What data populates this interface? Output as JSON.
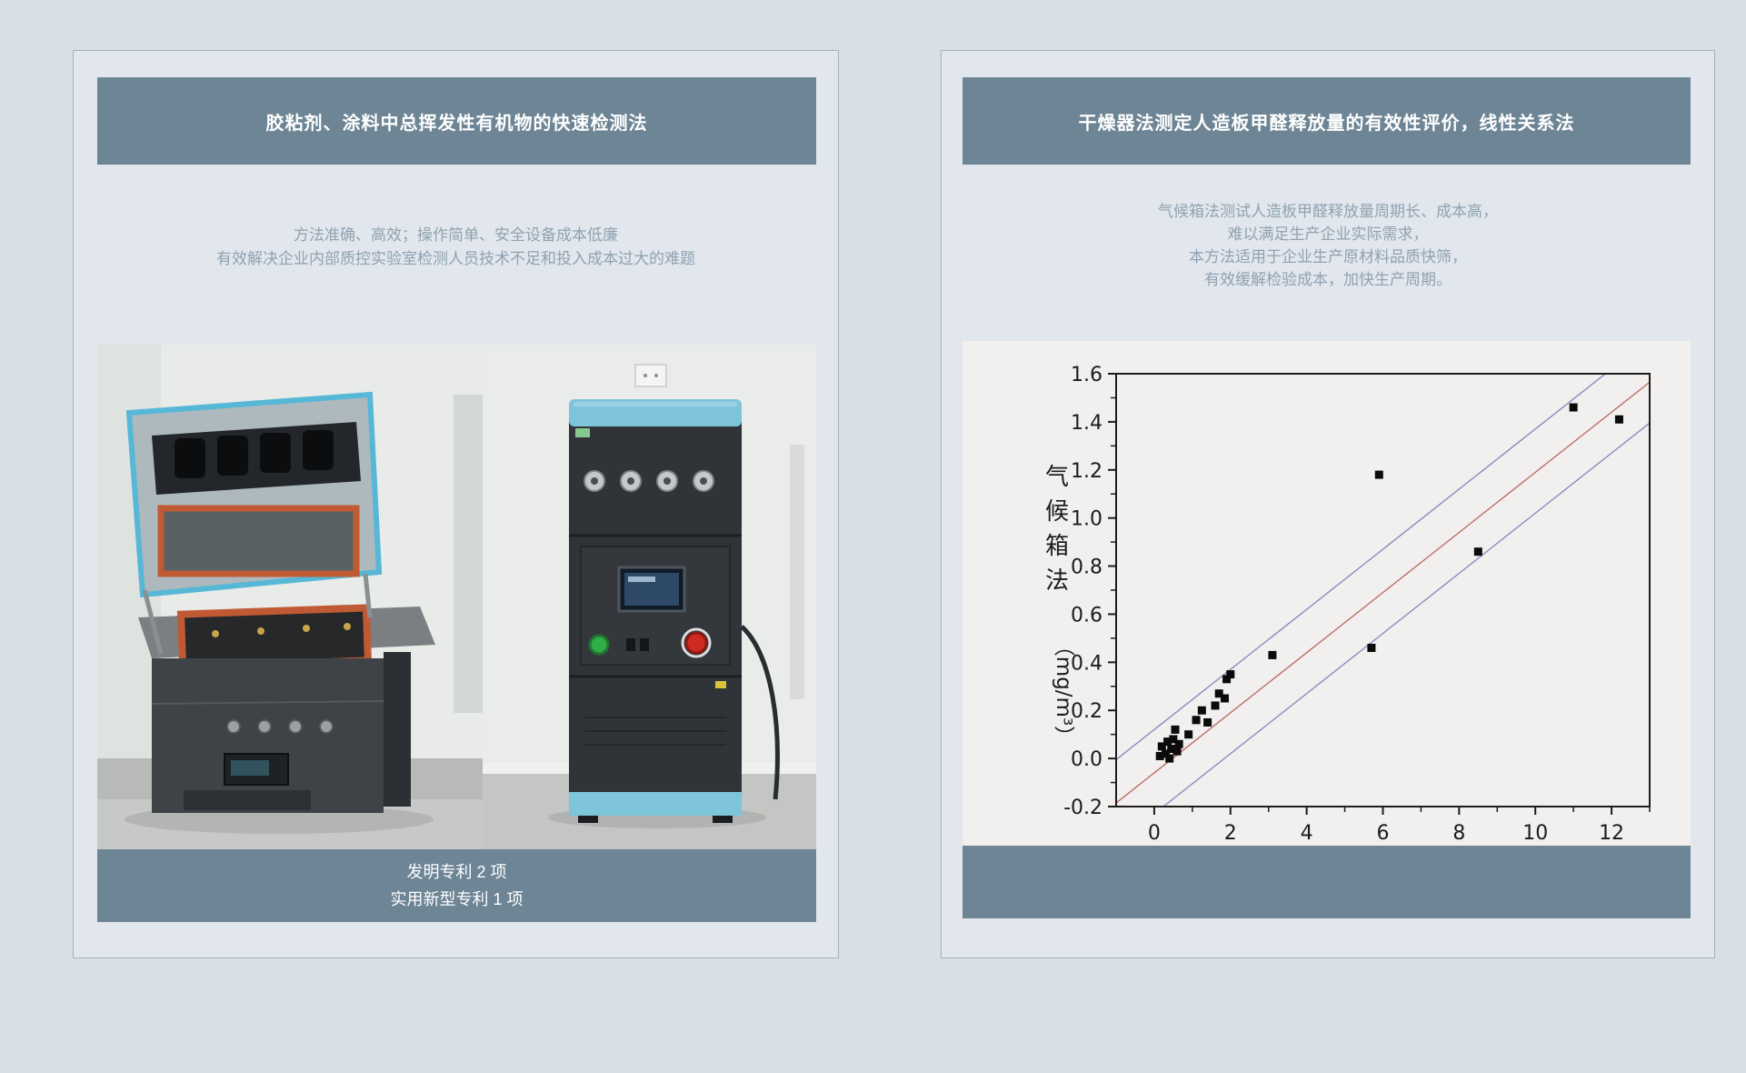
{
  "theme": {
    "accent_bar": "#6d8595",
    "page_background": "#d8dfe7",
    "panel_background": "#e2e7ee",
    "panel_border": "#a7b1b9",
    "description_text": "#8fa2b0"
  },
  "left_panel": {
    "title": "胶粘剂、涂料中总挥发性有机物的快速检测法",
    "description_lines": [
      "方法准确、高效；操作简单、安全设备成本低廉",
      "有效解决企业内部质控实验室检测人员技术不足和投入成本过大的难题"
    ],
    "photos": [
      {
        "name": "voc-tester-open-chamber"
      },
      {
        "name": "voc-tester-cabinet"
      }
    ],
    "footer_lines": [
      "发明专利 2 项",
      "实用新型专利 1 项"
    ]
  },
  "right_panel": {
    "title": "干燥器法测定人造板甲醛释放量的有效性评价，线性关系法",
    "description_lines": [
      "气候箱法测试人造板甲醛释放量周期长、成本高，",
      "难以满足生产企业实际需求，",
      "本方法适用于企业生产原材料品质快筛，",
      "有效缓解检验成本，加快生产周期。"
    ]
  },
  "chart_data": {
    "type": "scatter",
    "title": "",
    "xlabel": "",
    "ylabel": "气候箱法",
    "ylabel_unit": "（mg/m³）",
    "xlim": [
      -1,
      13
    ],
    "ylim": [
      -0.2,
      1.6
    ],
    "grid": false,
    "legend": null,
    "colors": {
      "plot_background": "#f1f0ee",
      "axis": "#1c1c1c",
      "marker": "#0b0b0b"
    },
    "x_ticks": {
      "major": [
        {
          "v": 0,
          "label": "0"
        },
        {
          "v": 2,
          "label": "2"
        },
        {
          "v": 4,
          "label": "4"
        },
        {
          "v": 6,
          "label": "6"
        },
        {
          "v": 8,
          "label": "8"
        },
        {
          "v": 10,
          "label": "10"
        },
        {
          "v": 12,
          "label": "12"
        }
      ],
      "minor": [
        1,
        3,
        5,
        7,
        9,
        11,
        13
      ]
    },
    "y_ticks": {
      "major": [
        {
          "v": -0.2,
          "label": "-0.2"
        },
        {
          "v": 0.0,
          "label": "0.0"
        },
        {
          "v": 0.2,
          "label": "0.2"
        },
        {
          "v": 0.4,
          "label": "0.4"
        },
        {
          "v": 0.6,
          "label": "0.6"
        },
        {
          "v": 0.8,
          "label": "0.8"
        },
        {
          "v": 1.0,
          "label": "1.0"
        },
        {
          "v": 1.2,
          "label": "1.2"
        },
        {
          "v": 1.4,
          "label": "1.4"
        },
        {
          "v": 1.6,
          "label": "1.6"
        }
      ],
      "minor": [
        -0.1,
        0.1,
        0.3,
        0.5,
        0.7,
        0.9,
        1.1,
        1.3,
        1.5
      ]
    },
    "lines": [
      {
        "name": "upper-confidence-line",
        "color": "#8a8cc1",
        "slope": 0.125,
        "intercept": 0.12
      },
      {
        "name": "regression-line",
        "color": "#bf6f6a",
        "slope": 0.125,
        "intercept": -0.06
      },
      {
        "name": "lower-confidence-line",
        "color": "#8a8cc1",
        "slope": 0.125,
        "intercept": -0.23
      }
    ],
    "marker": "square",
    "points": [
      [
        0.15,
        0.01
      ],
      [
        0.2,
        0.05
      ],
      [
        0.3,
        0.02
      ],
      [
        0.35,
        0.07
      ],
      [
        0.4,
        0.0
      ],
      [
        0.45,
        0.04
      ],
      [
        0.5,
        0.08
      ],
      [
        0.6,
        0.03
      ],
      [
        0.65,
        0.06
      ],
      [
        0.55,
        0.12
      ],
      [
        0.9,
        0.1
      ],
      [
        1.1,
        0.16
      ],
      [
        1.25,
        0.2
      ],
      [
        1.4,
        0.15
      ],
      [
        1.6,
        0.22
      ],
      [
        1.7,
        0.27
      ],
      [
        1.85,
        0.25
      ],
      [
        1.9,
        0.33
      ],
      [
        2.0,
        0.35
      ],
      [
        3.1,
        0.43
      ],
      [
        5.7,
        0.46
      ],
      [
        5.9,
        1.18
      ],
      [
        8.5,
        0.86
      ],
      [
        11.0,
        1.46
      ],
      [
        12.2,
        1.41
      ]
    ]
  }
}
